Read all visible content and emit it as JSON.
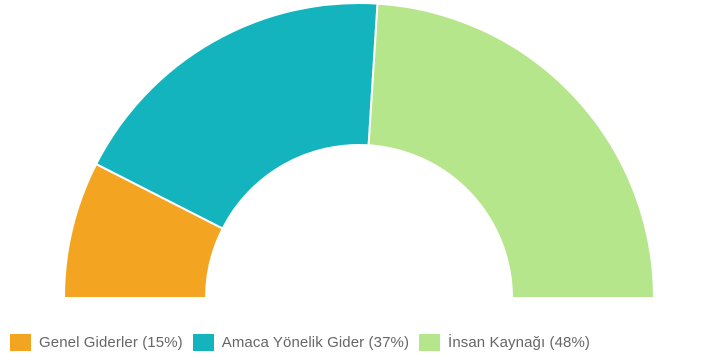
{
  "chart_data": {
    "type": "pie",
    "variant": "half-donut",
    "title": "",
    "slices": [
      {
        "label": "Genel Giderler",
        "value": 15,
        "color": "#f3a420"
      },
      {
        "label": "Amaca Yönelik Gider",
        "value": 37,
        "color": "#14b4bf"
      },
      {
        "label": "İnsan Kaynağı",
        "value": 48,
        "color": "#b6e68b"
      }
    ],
    "legend_position": "bottom-left",
    "legend": {
      "items": [
        {
          "text": "Genel Giderler (15%)",
          "color": "#f3a420"
        },
        {
          "text": "Amaca Yönelik Gider (37%)",
          "color": "#14b4bf"
        },
        {
          "text": "İnsan Kaynağı (48%)",
          "color": "#b6e68b"
        }
      ]
    }
  }
}
